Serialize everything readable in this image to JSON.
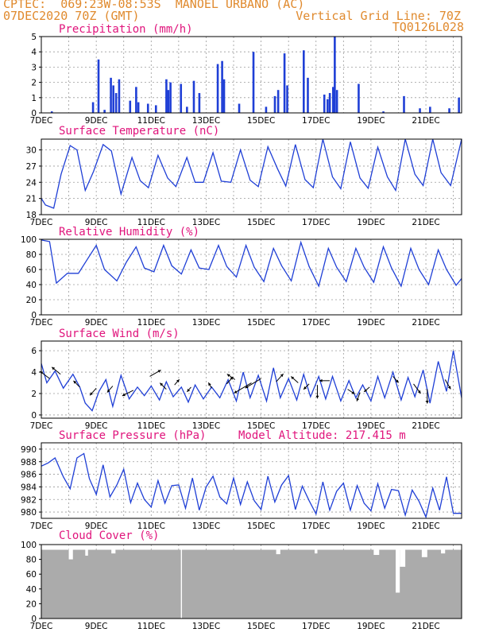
{
  "header": {
    "left_line1": "CPTEC:  069:23W-08:53S  MANOEL URBANO (AC)",
    "left_line2": "07DEC2020 70Z (GMT)",
    "right_line1": "Vertical Grid Line: 70Z",
    "right_line2": "TQ0126L028"
  },
  "colors": {
    "header": "#e08a2e",
    "title": "#e0147c",
    "series": "#1f3fd6",
    "arrow": "#000000",
    "cloud": "#ababab"
  },
  "chart_data": [
    {
      "type": "bar",
      "title": "Precipitation (mm/h)",
      "x_labels": [
        "7DEC",
        "9DEC",
        "11DEC",
        "13DEC",
        "15DEC",
        "17DEC",
        "19DEC",
        "21DEC"
      ],
      "xlim_days": [
        7,
        22.3
      ],
      "ylim": [
        0,
        5
      ],
      "yticks": [
        0,
        1,
        2,
        3,
        4,
        5
      ],
      "grid": true,
      "points": [
        {
          "day": 7.38,
          "v": 0.1
        },
        {
          "day": 8.88,
          "v": 0.7
        },
        {
          "day": 9.08,
          "v": 3.5
        },
        {
          "day": 9.3,
          "v": 0.2
        },
        {
          "day": 9.53,
          "v": 2.3
        },
        {
          "day": 9.62,
          "v": 1.8
        },
        {
          "day": 9.72,
          "v": 1.3
        },
        {
          "day": 9.83,
          "v": 2.2
        },
        {
          "day": 10.23,
          "v": 0.8
        },
        {
          "day": 10.45,
          "v": 1.7
        },
        {
          "day": 10.53,
          "v": 0.7
        },
        {
          "day": 10.88,
          "v": 0.6
        },
        {
          "day": 11.17,
          "v": 0.5
        },
        {
          "day": 11.55,
          "v": 2.2
        },
        {
          "day": 11.62,
          "v": 1.5
        },
        {
          "day": 11.7,
          "v": 2.0
        },
        {
          "day": 12.08,
          "v": 1.9
        },
        {
          "day": 12.3,
          "v": 0.4
        },
        {
          "day": 12.55,
          "v": 2.1
        },
        {
          "day": 12.75,
          "v": 1.3
        },
        {
          "day": 13.42,
          "v": 3.2
        },
        {
          "day": 13.58,
          "v": 3.4
        },
        {
          "day": 13.65,
          "v": 2.2
        },
        {
          "day": 14.2,
          "v": 0.6
        },
        {
          "day": 14.72,
          "v": 4.0
        },
        {
          "day": 15.18,
          "v": 0.4
        },
        {
          "day": 15.5,
          "v": 1.1
        },
        {
          "day": 15.62,
          "v": 1.5
        },
        {
          "day": 15.85,
          "v": 3.9
        },
        {
          "day": 15.95,
          "v": 1.8
        },
        {
          "day": 16.55,
          "v": 4.1
        },
        {
          "day": 16.7,
          "v": 2.3
        },
        {
          "day": 17.3,
          "v": 1.2
        },
        {
          "day": 17.42,
          "v": 0.9
        },
        {
          "day": 17.5,
          "v": 1.3
        },
        {
          "day": 17.62,
          "v": 1.7
        },
        {
          "day": 17.68,
          "v": 5.0
        },
        {
          "day": 17.76,
          "v": 1.5
        },
        {
          "day": 18.55,
          "v": 1.9
        },
        {
          "day": 19.45,
          "v": 0.1
        },
        {
          "day": 20.2,
          "v": 1.1
        },
        {
          "day": 20.78,
          "v": 0.3
        },
        {
          "day": 21.15,
          "v": 0.4
        },
        {
          "day": 21.85,
          "v": 0.3
        },
        {
          "day": 22.2,
          "v": 1.0
        }
      ]
    },
    {
      "type": "line",
      "title": "Surface Temperature (nC)",
      "x_labels": [
        "7DEC",
        "9DEC",
        "11DEC",
        "13DEC",
        "15DEC",
        "17DEC",
        "19DEC",
        "21DEC"
      ],
      "xlim_days": [
        7,
        22.3
      ],
      "ylim": [
        18,
        32
      ],
      "yticks": [
        18,
        21,
        24,
        27,
        30
      ],
      "grid": true,
      "x": [
        7.0,
        7.15,
        7.45,
        7.72,
        8.05,
        8.3,
        8.6,
        8.9,
        9.25,
        9.55,
        9.9,
        10.3,
        10.6,
        10.9,
        11.25,
        11.6,
        11.9,
        12.3,
        12.6,
        12.9,
        13.25,
        13.55,
        13.9,
        14.25,
        14.6,
        14.9,
        15.25,
        15.6,
        15.9,
        16.25,
        16.6,
        16.9,
        17.25,
        17.6,
        17.9,
        18.25,
        18.6,
        18.9,
        19.25,
        19.6,
        19.9,
        20.25,
        20.6,
        20.9,
        21.25,
        21.55,
        21.9,
        22.3
      ],
      "y": [
        21.0,
        19.8,
        19.2,
        25.5,
        30.8,
        30.0,
        22.5,
        26.0,
        31.0,
        29.8,
        21.8,
        28.6,
        24.3,
        23.0,
        29.0,
        24.8,
        23.2,
        28.6,
        24.0,
        24.0,
        29.5,
        24.2,
        24.0,
        30.0,
        24.4,
        23.2,
        30.6,
        26.5,
        23.3,
        31.0,
        24.5,
        23.0,
        32.0,
        25.0,
        22.8,
        31.5,
        24.8,
        22.9,
        30.5,
        25.0,
        22.5,
        32.5,
        25.5,
        23.4,
        32.5,
        25.8,
        23.4,
        32.5
      ]
    },
    {
      "type": "line",
      "title": "Relative Humidity (%)",
      "x_labels": [
        "7DEC",
        "9DEC",
        "11DEC",
        "13DEC",
        "15DEC",
        "17DEC",
        "19DEC",
        "21DEC"
      ],
      "xlim_days": [
        7,
        22.3
      ],
      "ylim": [
        0,
        100
      ],
      "yticks": [
        0,
        20,
        40,
        60,
        80,
        100
      ],
      "grid": true,
      "x": [
        7.0,
        7.3,
        7.55,
        7.95,
        8.35,
        8.7,
        9.0,
        9.3,
        9.75,
        10.1,
        10.45,
        10.75,
        11.1,
        11.45,
        11.75,
        12.1,
        12.45,
        12.75,
        13.1,
        13.45,
        13.75,
        14.1,
        14.45,
        14.75,
        15.1,
        15.45,
        15.75,
        16.1,
        16.45,
        16.75,
        17.1,
        17.45,
        17.75,
        18.1,
        18.45,
        18.75,
        19.1,
        19.45,
        19.75,
        20.1,
        20.45,
        20.75,
        21.1,
        21.45,
        21.75,
        22.1,
        22.3
      ],
      "y": [
        99,
        97,
        42,
        55,
        55,
        75,
        92,
        60,
        45,
        70,
        90,
        62,
        57,
        92,
        65,
        54,
        86,
        62,
        60,
        92,
        64,
        50,
        92,
        63,
        44,
        88,
        65,
        45,
        96,
        64,
        38,
        88,
        63,
        44,
        88,
        63,
        43,
        90,
        62,
        38,
        88,
        60,
        40,
        86,
        60,
        39,
        48
      ]
    },
    {
      "type": "line",
      "title": "Surface Wind (m/s)",
      "x_labels": [
        "7DEC",
        "9DEC",
        "11DEC",
        "13DEC",
        "15DEC",
        "17DEC",
        "19DEC",
        "21DEC"
      ],
      "xlim_days": [
        7,
        22.3
      ],
      "ylim": [
        -0.3,
        6.9
      ],
      "yticks": [
        0,
        2,
        4,
        6
      ],
      "grid": true,
      "x": [
        7.0,
        7.2,
        7.5,
        7.8,
        8.15,
        8.4,
        8.6,
        8.85,
        9.1,
        9.35,
        9.6,
        9.9,
        10.2,
        10.5,
        10.75,
        11.0,
        11.3,
        11.55,
        11.8,
        12.1,
        12.35,
        12.6,
        12.9,
        13.2,
        13.5,
        13.8,
        14.1,
        14.35,
        14.6,
        14.9,
        15.2,
        15.45,
        15.7,
        16.0,
        16.3,
        16.55,
        16.8,
        17.1,
        17.35,
        17.6,
        17.9,
        18.2,
        18.45,
        18.7,
        19.0,
        19.25,
        19.5,
        19.8,
        20.1,
        20.35,
        20.6,
        20.9,
        21.15,
        21.45,
        21.75,
        22.0,
        22.3
      ],
      "y": [
        4.8,
        3.0,
        4.1,
        2.5,
        3.8,
        2.6,
        1.1,
        0.4,
        2.2,
        3.3,
        0.8,
        3.7,
        1.5,
        2.6,
        1.8,
        2.7,
        1.4,
        3.1,
        1.7,
        2.6,
        1.2,
        2.8,
        1.5,
        2.6,
        1.6,
        3.3,
        1.3,
        4.0,
        1.6,
        3.7,
        1.3,
        4.4,
        1.6,
        3.4,
        1.4,
        3.8,
        1.7,
        3.6,
        1.5,
        3.6,
        1.3,
        3.2,
        1.6,
        2.8,
        1.3,
        3.6,
        1.6,
        4.0,
        1.4,
        3.5,
        1.7,
        4.2,
        1.1,
        5.0,
        2.2,
        6.0,
        1.6
      ],
      "vectors": [
        {
          "day": 7.3,
          "s": 3.4,
          "dx": -12,
          "dy": -9
        },
        {
          "day": 7.7,
          "s": 3.8,
          "dx": -11,
          "dy": -9
        },
        {
          "day": 8.4,
          "s": 2.6,
          "dx": -8,
          "dy": -8
        },
        {
          "day": 9.0,
          "s": 2.5,
          "dx": -8,
          "dy": 9
        },
        {
          "day": 9.6,
          "s": 2.7,
          "dx": -7,
          "dy": 8
        },
        {
          "day": 10.35,
          "s": 2.3,
          "dx": -14,
          "dy": 7
        },
        {
          "day": 10.95,
          "s": 3.6,
          "dx": 14,
          "dy": -8
        },
        {
          "day": 11.55,
          "s": 2.4,
          "dx": -8,
          "dy": -8
        },
        {
          "day": 11.85,
          "s": 2.8,
          "dx": 6,
          "dy": -7
        },
        {
          "day": 12.45,
          "s": 2.6,
          "dx": -5,
          "dy": 6
        },
        {
          "day": 13.2,
          "s": 2.5,
          "dx": -4,
          "dy": -7
        },
        {
          "day": 13.75,
          "s": 2.9,
          "dx": 8,
          "dy": -9
        },
        {
          "day": 14.05,
          "s": 3.3,
          "dx": -10,
          "dy": -7
        },
        {
          "day": 14.65,
          "s": 3.0,
          "dx": -22,
          "dy": 13
        },
        {
          "day": 15.0,
          "s": 3.4,
          "dx": -20,
          "dy": 12
        },
        {
          "day": 15.55,
          "s": 3.1,
          "dx": 9,
          "dy": -10
        },
        {
          "day": 16.35,
          "s": 3.0,
          "dx": -9,
          "dy": -8
        },
        {
          "day": 16.75,
          "s": 2.9,
          "dx": -7,
          "dy": 7
        },
        {
          "day": 17.05,
          "s": 2.8,
          "dx": 0,
          "dy": 17
        },
        {
          "day": 17.5,
          "s": 3.2,
          "dx": -13,
          "dy": 0
        },
        {
          "day": 18.15,
          "s": 2.4,
          "dx": 9,
          "dy": 6
        },
        {
          "day": 18.6,
          "s": 2.1,
          "dx": -4,
          "dy": 11
        },
        {
          "day": 18.95,
          "s": 2.6,
          "dx": -7,
          "dy": 6
        },
        {
          "day": 19.8,
          "s": 3.6,
          "dx": 7,
          "dy": 8
        },
        {
          "day": 20.55,
          "s": 2.9,
          "dx": 9,
          "dy": 12
        },
        {
          "day": 21.05,
          "s": 2.4,
          "dx": 0,
          "dy": 18
        },
        {
          "day": 21.7,
          "s": 3.3,
          "dx": 7,
          "dy": 12
        }
      ]
    },
    {
      "type": "line",
      "title": "Surface Pressure (hPa)",
      "annotation": "Model Altitude: 217.415 m",
      "x_labels": [
        "7DEC",
        "9DEC",
        "11DEC",
        "13DEC",
        "15DEC",
        "17DEC",
        "19DEC",
        "21DEC"
      ],
      "xlim_days": [
        7,
        22.3
      ],
      "ylim": [
        979,
        991
      ],
      "yticks": [
        980,
        982,
        984,
        986,
        988,
        990
      ],
      "grid": true,
      "x": [
        7.0,
        7.25,
        7.5,
        7.8,
        8.05,
        8.3,
        8.55,
        8.75,
        9.0,
        9.25,
        9.5,
        9.75,
        10.0,
        10.25,
        10.5,
        10.75,
        11.0,
        11.25,
        11.5,
        11.75,
        12.0,
        12.25,
        12.5,
        12.75,
        13.0,
        13.25,
        13.5,
        13.75,
        14.0,
        14.25,
        14.5,
        14.75,
        15.0,
        15.25,
        15.5,
        15.75,
        16.0,
        16.25,
        16.5,
        16.75,
        17.0,
        17.25,
        17.5,
        17.75,
        18.0,
        18.25,
        18.5,
        18.75,
        19.0,
        19.25,
        19.5,
        19.75,
        20.0,
        20.25,
        20.5,
        20.75,
        21.0,
        21.25,
        21.5,
        21.75,
        22.0,
        22.3
      ],
      "y": [
        987.3,
        987.8,
        988.6,
        985.6,
        983.7,
        988.6,
        989.3,
        985.3,
        982.8,
        987.5,
        982.4,
        984.3,
        986.8,
        981.5,
        984.6,
        982.0,
        980.8,
        985.0,
        981.4,
        984.2,
        984.3,
        980.6,
        985.4,
        980.3,
        984.0,
        985.7,
        982.4,
        981.3,
        985.4,
        981.2,
        984.8,
        981.8,
        980.4,
        985.7,
        981.6,
        984.3,
        985.8,
        980.4,
        984.1,
        981.8,
        979.7,
        984.8,
        980.3,
        983.3,
        984.6,
        980.3,
        984.2,
        981.4,
        980.2,
        984.5,
        980.6,
        983.6,
        983.4,
        979.5,
        983.5,
        981.7,
        979.2,
        983.8,
        980.3,
        985.6,
        979.8,
        979.8
      ]
    },
    {
      "type": "bar",
      "title": "Cloud Cover (%)",
      "x_labels": [
        "7DEC",
        "9DEC",
        "11DEC",
        "13DEC",
        "15DEC",
        "17DEC",
        "19DEC",
        "21DEC"
      ],
      "xlim_days": [
        7,
        22.3
      ],
      "ylim": [
        0,
        100
      ],
      "yticks": [
        0,
        20,
        40,
        60,
        80,
        100
      ],
      "grid": true,
      "base_value": 93,
      "dips": [
        {
          "from": 7.0,
          "to": 7.35,
          "v": 95
        },
        {
          "from": 8.0,
          "to": 8.15,
          "v": 80
        },
        {
          "from": 8.6,
          "to": 8.7,
          "v": 85
        },
        {
          "from": 9.55,
          "to": 9.7,
          "v": 88
        },
        {
          "from": 12.08,
          "to": 12.12,
          "v": 0
        },
        {
          "from": 15.55,
          "to": 15.7,
          "v": 87
        },
        {
          "from": 16.95,
          "to": 17.05,
          "v": 88
        },
        {
          "from": 19.1,
          "to": 19.3,
          "v": 86
        },
        {
          "from": 19.9,
          "to": 20.05,
          "v": 35
        },
        {
          "from": 20.05,
          "to": 20.25,
          "v": 70
        },
        {
          "from": 20.85,
          "to": 21.05,
          "v": 83
        },
        {
          "from": 21.55,
          "to": 21.7,
          "v": 88
        }
      ]
    }
  ]
}
